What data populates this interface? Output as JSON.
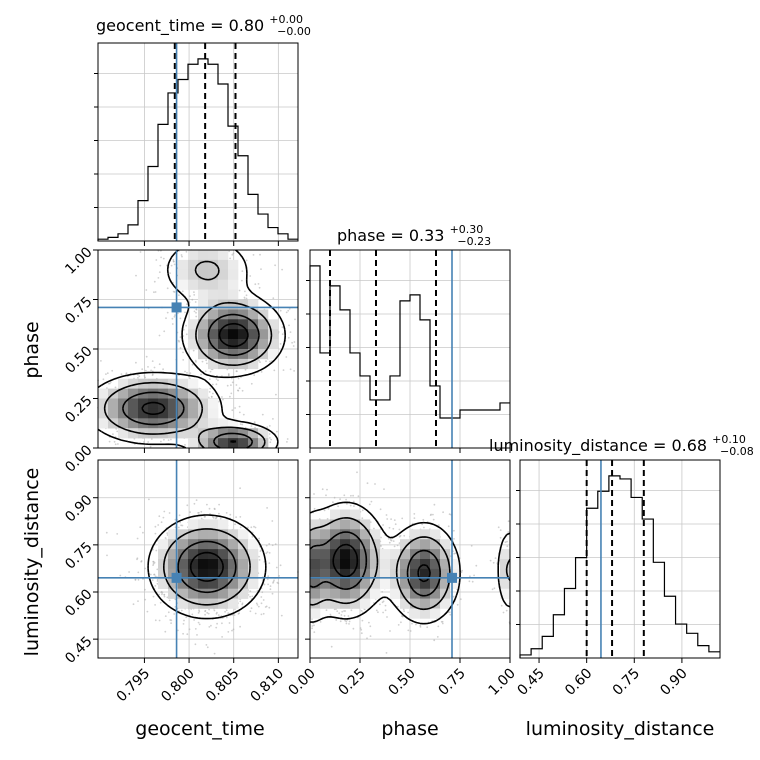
{
  "chart_data": {
    "type": "corner",
    "parameters": [
      "geocent_time",
      "phase",
      "luminosity_distance"
    ],
    "truths": [
      0.7986,
      0.71,
      0.645
    ],
    "ranges": [
      [
        0.7898,
        0.8122
      ],
      [
        0.0,
        1.0
      ],
      [
        0.39,
        1.02
      ]
    ],
    "ticks": [
      [
        0.795,
        0.8,
        0.805,
        0.81
      ],
      [
        0.0,
        0.25,
        0.5,
        0.75,
        1.0
      ],
      [
        0.45,
        0.6,
        0.75,
        0.9
      ]
    ],
    "tick_labels": [
      [
        "0.795",
        "0.800",
        "0.805",
        "0.810"
      ],
      [
        "0.00",
        "0.25",
        "0.50",
        "0.75",
        "1.00"
      ],
      [
        "0.45",
        "0.60",
        "0.75",
        "0.90"
      ]
    ],
    "titles": [
      {
        "name": "geocent_time",
        "median": "0.80",
        "plus": "+0.00",
        "minus": "−0.00"
      },
      {
        "name": "phase",
        "median": "0.33",
        "plus": "+0.30",
        "minus": "−0.23"
      },
      {
        "name": "luminosity_distance",
        "median": "0.68",
        "plus": "+0.10",
        "minus": "−0.08"
      }
    ],
    "quantiles": [
      [
        0.7984,
        0.8018,
        0.8052
      ],
      [
        0.1,
        0.33,
        0.63
      ],
      [
        0.6,
        0.68,
        0.78
      ]
    ],
    "histograms": [
      {
        "edges_range": [
          0.7898,
          0.8122
        ],
        "counts": [
          2,
          4,
          8,
          18,
          45,
          83,
          130,
          165,
          180,
          197,
          203,
          197,
          175,
          128,
          95,
          52,
          30,
          15,
          8,
          2
        ]
      },
      {
        "edges_range": [
          0.0,
          1.0
        ],
        "counts": [
          182,
          95,
          162,
          138,
          95,
          72,
          48,
          48,
          72,
          147,
          153,
          128,
          62,
          30,
          30,
          38,
          38,
          38,
          38,
          45
        ]
      },
      {
        "edges_range": [
          0.39,
          1.02
        ],
        "counts": [
          2,
          6,
          14,
          28,
          45,
          65,
          97,
          108,
          118,
          116,
          104,
          90,
          62,
          40,
          22,
          16,
          8,
          4
        ]
      }
    ],
    "density_2d": {
      "phase_vs_geocent_time": {
        "modes": [
          {
            "x": 0.805,
            "y": 0.57,
            "sx": 0.0028,
            "sy": 0.1,
            "amp": 1.0
          },
          {
            "x": 0.796,
            "y": 0.2,
            "sx": 0.0038,
            "sy": 0.09,
            "amp": 0.9
          },
          {
            "x": 0.805,
            "y": 0.03,
            "sx": 0.0025,
            "sy": 0.05,
            "amp": 0.85
          },
          {
            "x": 0.802,
            "y": 0.9,
            "sx": 0.003,
            "sy": 0.1,
            "amp": 0.35
          }
        ]
      },
      "luminosity_distance_vs_geocent_time": {
        "modes": [
          {
            "x": 0.802,
            "y": 0.68,
            "sx": 0.0032,
            "sy": 0.08,
            "amp": 1.0
          }
        ]
      },
      "luminosity_distance_vs_phase": {
        "modes": [
          {
            "x": 0.18,
            "y": 0.7,
            "sx": 0.1,
            "sy": 0.09,
            "amp": 1.0
          },
          {
            "x": 0.57,
            "y": 0.66,
            "sx": 0.09,
            "sy": 0.08,
            "amp": 0.9
          },
          {
            "x": 0.0,
            "y": 0.67,
            "sx": 0.05,
            "sy": 0.09,
            "amp": 0.55
          },
          {
            "x": 1.0,
            "y": 0.67,
            "sx": 0.04,
            "sy": 0.08,
            "amp": 0.35
          }
        ]
      }
    },
    "contour_levels": [
      0.12,
      0.32,
      0.6,
      0.85
    ],
    "truth_color": "#4682b4",
    "grid": true
  }
}
